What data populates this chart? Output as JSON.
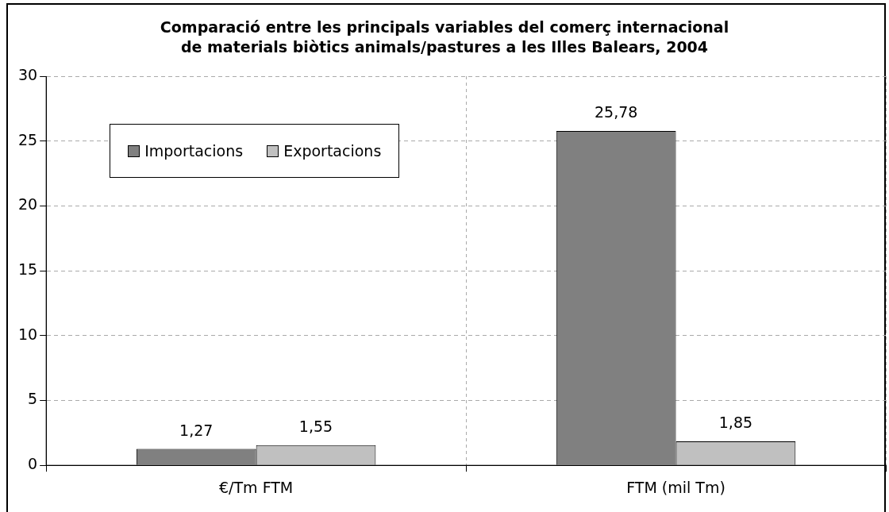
{
  "chart_data": {
    "type": "bar",
    "title": "Comparació entre les principals variables del comerç internacional de materials biòtics animals/pastures a les Illes Balears, 2004",
    "categories": [
      "€/Tm FTM",
      "FTM (mil Tm)"
    ],
    "series": [
      {
        "name": "Importacions",
        "color": "#808080",
        "values": [
          1.27,
          25.78
        ],
        "value_labels": [
          "1,27",
          "25,78"
        ]
      },
      {
        "name": "Exportacions",
        "color": "#c0c0c0",
        "values": [
          1.55,
          1.85
        ],
        "value_labels": [
          "1,55",
          "1,85"
        ]
      }
    ],
    "ylim": [
      0,
      30
    ],
    "yticks": [
      0,
      5,
      10,
      15,
      20,
      25,
      30
    ],
    "grid": true,
    "legend": "top left"
  }
}
